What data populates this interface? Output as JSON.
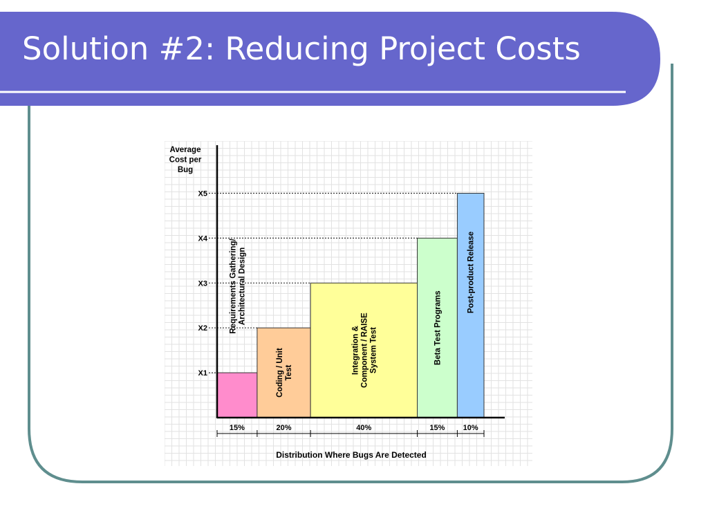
{
  "slide": {
    "title": "Solution #2: Reducing Project Costs",
    "colors": {
      "title_band": "#6666cc",
      "frame_border": "#5f8e8e"
    }
  },
  "chart_data": {
    "type": "bar",
    "ylabel": [
      "Average",
      "Cost per",
      "Bug"
    ],
    "xlabel": "Distribution Where Bugs Are Detected",
    "y_ticks": [
      {
        "label": "X1",
        "value": 1
      },
      {
        "label": "X2",
        "value": 2
      },
      {
        "label": "X3",
        "value": 3
      },
      {
        "label": "X4",
        "value": 4
      },
      {
        "label": "X5",
        "value": 5
      }
    ],
    "ylim": [
      0,
      5.8
    ],
    "grid": true,
    "bars": [
      {
        "lines": [
          "Requirements Gathering/",
          "Architectural Design"
        ],
        "share": 15,
        "share_label": "15%",
        "value": 1,
        "color": "#ff8ccc"
      },
      {
        "lines": [
          "Coding / Unit",
          "Test"
        ],
        "share": 20,
        "share_label": "20%",
        "value": 2,
        "color": "#ffcc99"
      },
      {
        "lines": [
          "Integration &",
          "Component / RAISE",
          "System Test"
        ],
        "share": 40,
        "share_label": "40%",
        "value": 3,
        "color": "#ffff99"
      },
      {
        "lines": [
          "Beta Test Programs"
        ],
        "share": 15,
        "share_label": "15%",
        "value": 4,
        "color": "#ccffcc"
      },
      {
        "lines": [
          "Post-product Release"
        ],
        "share": 10,
        "share_label": "10%",
        "value": 5,
        "color": "#99ccff"
      }
    ]
  }
}
